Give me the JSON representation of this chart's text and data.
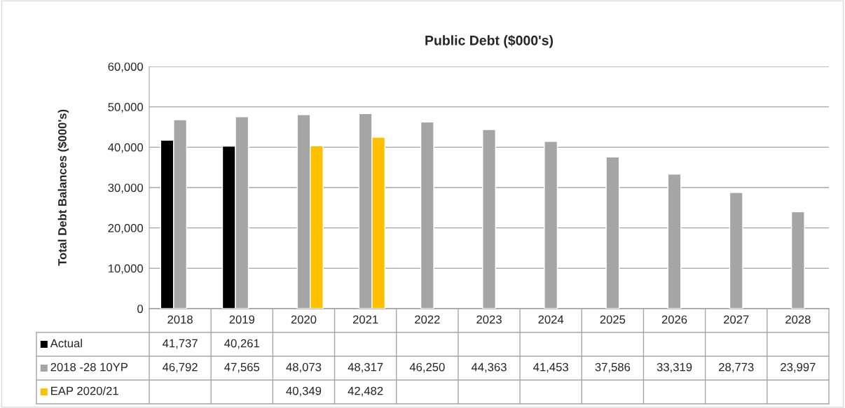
{
  "chart_data": {
    "type": "bar",
    "title": "Public Debt ($000's)",
    "ylabel": "Total Debt Balances ($000's)",
    "categories": [
      "2018",
      "2019",
      "2020",
      "2021",
      "2022",
      "2023",
      "2024",
      "2025",
      "2026",
      "2027",
      "2028"
    ],
    "series": [
      {
        "name": "Actual",
        "color": "#000000",
        "values": [
          41737,
          40261,
          null,
          null,
          null,
          null,
          null,
          null,
          null,
          null,
          null
        ],
        "value_labels": [
          "41,737",
          "40,261",
          null,
          null,
          null,
          null,
          null,
          null,
          null,
          null,
          null
        ]
      },
      {
        "name": "2018 -28 10YP",
        "color": "#a5a5a5",
        "values": [
          46792,
          47565,
          48073,
          48317,
          46250,
          44363,
          41453,
          37586,
          33319,
          28773,
          23997
        ],
        "value_labels": [
          "46,792",
          "47,565",
          "48,073",
          "48,317",
          "46,250",
          "44,363",
          "41,453",
          "37,586",
          "33,319",
          "28,773",
          "23,997"
        ]
      },
      {
        "name": "EAP 2020/21",
        "color": "#ffc000",
        "values": [
          null,
          null,
          40349,
          42482,
          null,
          null,
          null,
          null,
          null,
          null,
          null
        ],
        "value_labels": [
          null,
          null,
          "40,349",
          "42,482",
          null,
          null,
          null,
          null,
          null,
          null,
          null
        ]
      }
    ],
    "ylim": [
      0,
      60000
    ],
    "yticks": [
      {
        "value": 0,
        "label": "0"
      },
      {
        "value": 10000,
        "label": "10,000"
      },
      {
        "value": 20000,
        "label": "20,000"
      },
      {
        "value": 30000,
        "label": "30,000"
      },
      {
        "value": 40000,
        "label": "40,000"
      },
      {
        "value": 50000,
        "label": "50,000"
      },
      {
        "value": 60000,
        "label": "60,000"
      }
    ],
    "grid": "y",
    "legend": "bottom"
  }
}
